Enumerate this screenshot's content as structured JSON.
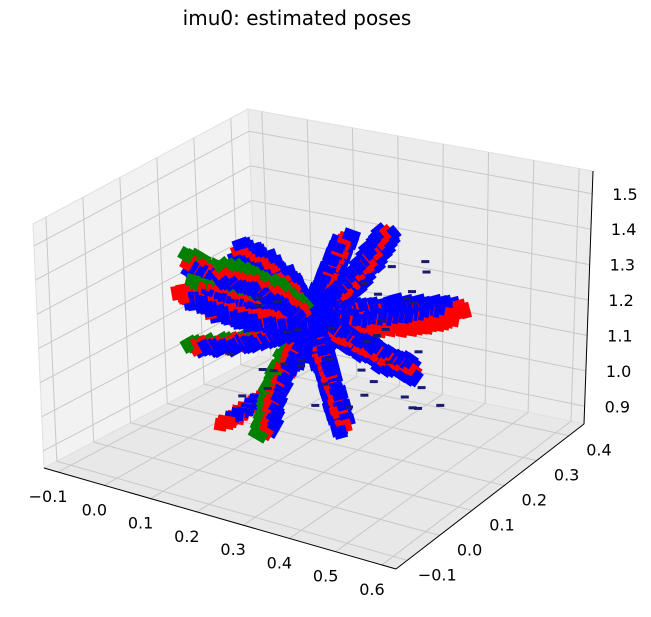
{
  "chart_data": {
    "type": "scatter",
    "projection": "3d",
    "title": "imu0: estimated poses",
    "xlabel": "",
    "ylabel": "",
    "zlabel": "",
    "grid": true,
    "legend": "none",
    "xlim": [
      -0.1,
      0.65
    ],
    "ylim": [
      -0.15,
      0.45
    ],
    "zlim": [
      0.85,
      1.55
    ],
    "x_ticks": [
      "−0.1",
      "0.0",
      "0.1",
      "0.2",
      "0.3",
      "0.4",
      "0.5",
      "0.6"
    ],
    "y_ticks": [
      "−0.1",
      "0.0",
      "0.1",
      "0.2",
      "0.3",
      "0.4"
    ],
    "z_ticks": [
      "0.9",
      "1.0",
      "1.1",
      "1.2",
      "1.3",
      "1.4",
      "1.5"
    ],
    "axis_colors": {
      "x_axis": "#ff0000",
      "y_axis": "#008000",
      "z_axis": "#0000ff"
    },
    "pane_color": "#f2f2f2",
    "grid_color": "#c8c8c8"
  }
}
